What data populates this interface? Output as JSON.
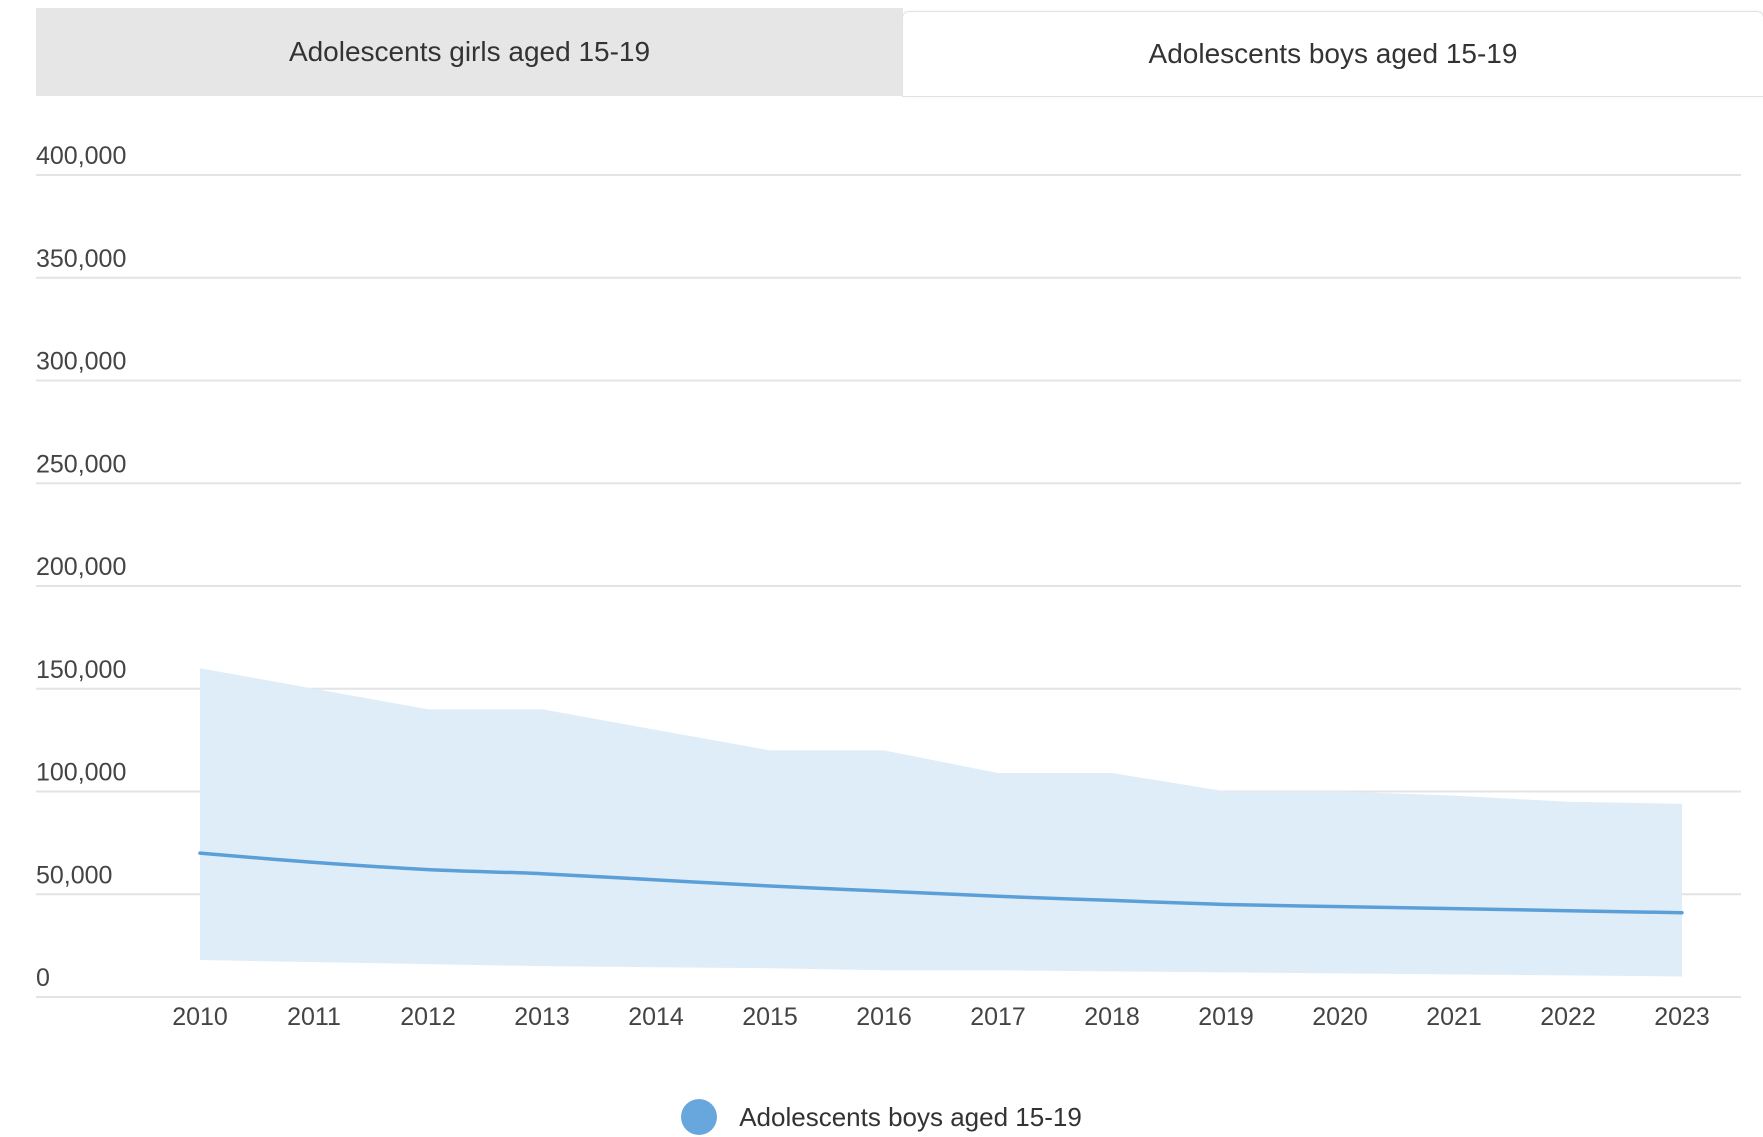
{
  "tabs": [
    {
      "label": "Adolescents girls aged 15-19",
      "active": false
    },
    {
      "label": "Adolescents boys aged 15-19",
      "active": true
    }
  ],
  "colors": {
    "line": "#5b9fd9",
    "band": "#dfedf8",
    "grid": "#e4e4e4",
    "legend_dot": "#67a7de"
  },
  "chart_data": {
    "type": "line",
    "x": [
      2010,
      2011,
      2012,
      2013,
      2014,
      2015,
      2016,
      2017,
      2018,
      2019,
      2020,
      2021,
      2022,
      2023
    ],
    "series": [
      {
        "name": "Adolescents boys aged 15-19",
        "values": [
          70000,
          65500,
          62000,
          60000,
          57000,
          54000,
          51500,
          49000,
          47000,
          45000,
          44000,
          43000,
          42000,
          41000
        ],
        "lower": [
          18000,
          17000,
          16000,
          15000,
          14500,
          14000,
          13000,
          13000,
          12500,
          12000,
          11500,
          11000,
          10500,
          10000
        ],
        "upper": [
          160000,
          150000,
          140000,
          140000,
          130000,
          120000,
          120000,
          109000,
          109000,
          100000,
          100000,
          98000,
          95000,
          94000
        ]
      }
    ],
    "yticks": [
      "0",
      "50,000",
      "100,000",
      "150,000",
      "200,000",
      "250,000",
      "300,000",
      "350,000",
      "400,000"
    ],
    "ylim": [
      0,
      400000
    ],
    "xlabel": "",
    "ylabel": "",
    "title": "",
    "grid": true,
    "legend": "bottom-center"
  },
  "legend": {
    "label": "Adolescents boys aged 15-19"
  }
}
